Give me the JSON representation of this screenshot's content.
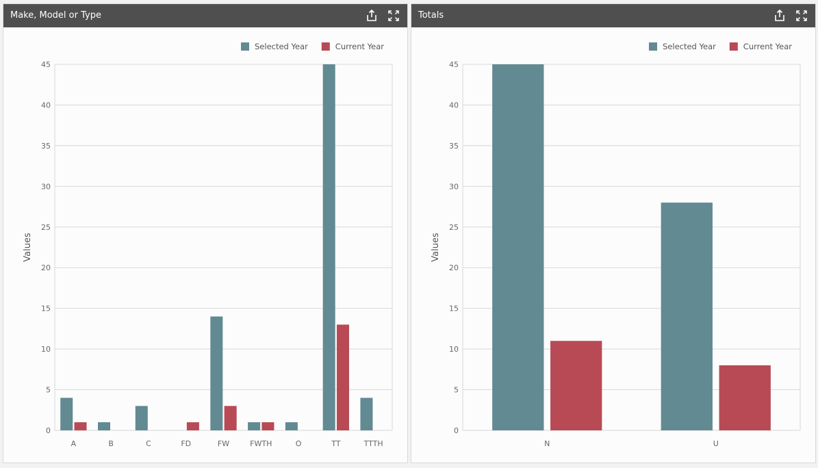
{
  "panels": [
    {
      "title": "Make, Model or Type",
      "share_icon": "share-icon",
      "expand_icon": "expand-icon"
    },
    {
      "title": "Totals",
      "share_icon": "share-icon",
      "expand_icon": "expand-icon"
    }
  ],
  "colors": {
    "selected": "#628a92",
    "current": "#b84a55",
    "grid": "#d9d9d9"
  },
  "chart_data": [
    {
      "type": "bar",
      "categories": [
        "A",
        "B",
        "C",
        "FD",
        "FW",
        "FWTH",
        "O",
        "TT",
        "TTTH"
      ],
      "series": [
        {
          "name": "Selected Year",
          "values": [
            4,
            1,
            3,
            0,
            14,
            1,
            1,
            45,
            4
          ]
        },
        {
          "name": "Current Year",
          "values": [
            1,
            0,
            0,
            1,
            3,
            1,
            0,
            13,
            0
          ]
        }
      ],
      "ylabel": "Values",
      "ylim": [
        0,
        45
      ],
      "yticks": [
        0,
        5,
        10,
        15,
        20,
        25,
        30,
        35,
        40,
        45
      ],
      "grid": true,
      "legend": "top-right"
    },
    {
      "type": "bar",
      "categories": [
        "N",
        "U"
      ],
      "series": [
        {
          "name": "Selected Year",
          "values": [
            45,
            28
          ]
        },
        {
          "name": "Current Year",
          "values": [
            11,
            8
          ]
        }
      ],
      "ylabel": "Values",
      "ylim": [
        0,
        45
      ],
      "yticks": [
        0,
        5,
        10,
        15,
        20,
        25,
        30,
        35,
        40,
        45
      ],
      "grid": true,
      "legend": "top-right"
    }
  ]
}
